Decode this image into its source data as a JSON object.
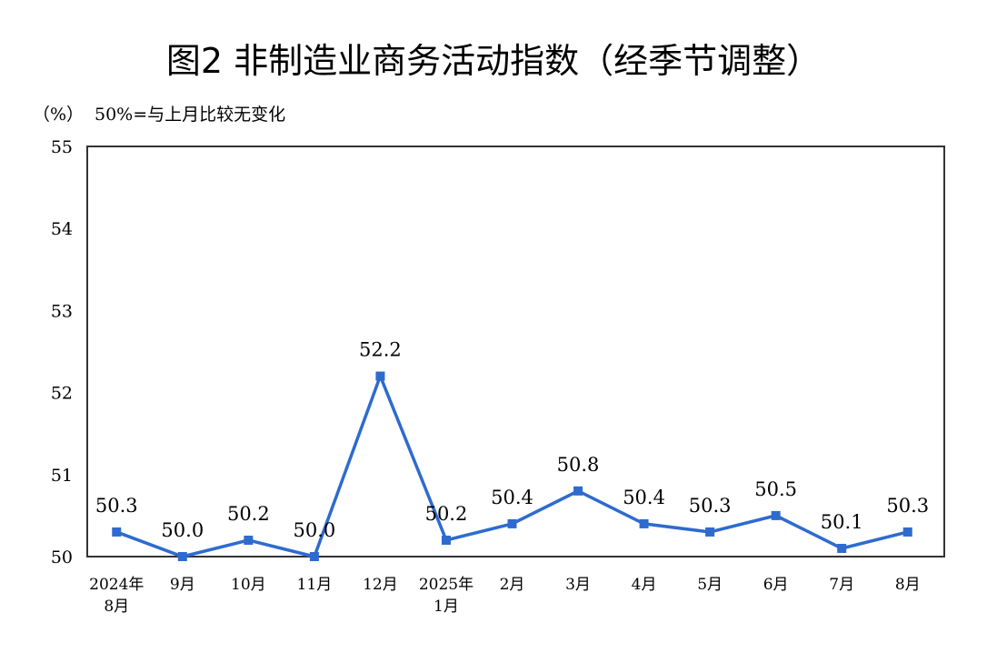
{
  "chart_data": {
    "type": "line",
    "title": "图2  非制造业商务活动指数（经季节调整）",
    "unit_label": "（%）",
    "annotation": "50%=与上月比较无变化",
    "categories": [
      "2024年\n8月",
      "9月",
      "10月",
      "11月",
      "12月",
      "2025年\n1月",
      "2月",
      "3月",
      "4月",
      "5月",
      "6月",
      "7月",
      "8月"
    ],
    "values": [
      50.3,
      50.0,
      50.2,
      50.0,
      52.2,
      50.2,
      50.4,
      50.8,
      50.4,
      50.3,
      50.5,
      50.1,
      50.3
    ],
    "data_labels": [
      "50.3",
      "50.0",
      "50.2",
      "50.0",
      "52.2",
      "50.2",
      "50.4",
      "50.8",
      "50.4",
      "50.3",
      "50.5",
      "50.1",
      "50.3"
    ],
    "ylim": [
      50,
      55
    ],
    "yticks": [
      50,
      51,
      52,
      53,
      54,
      55
    ],
    "grid": false,
    "legend": "none",
    "line_color": "#2e6bcf",
    "marker": "square"
  }
}
